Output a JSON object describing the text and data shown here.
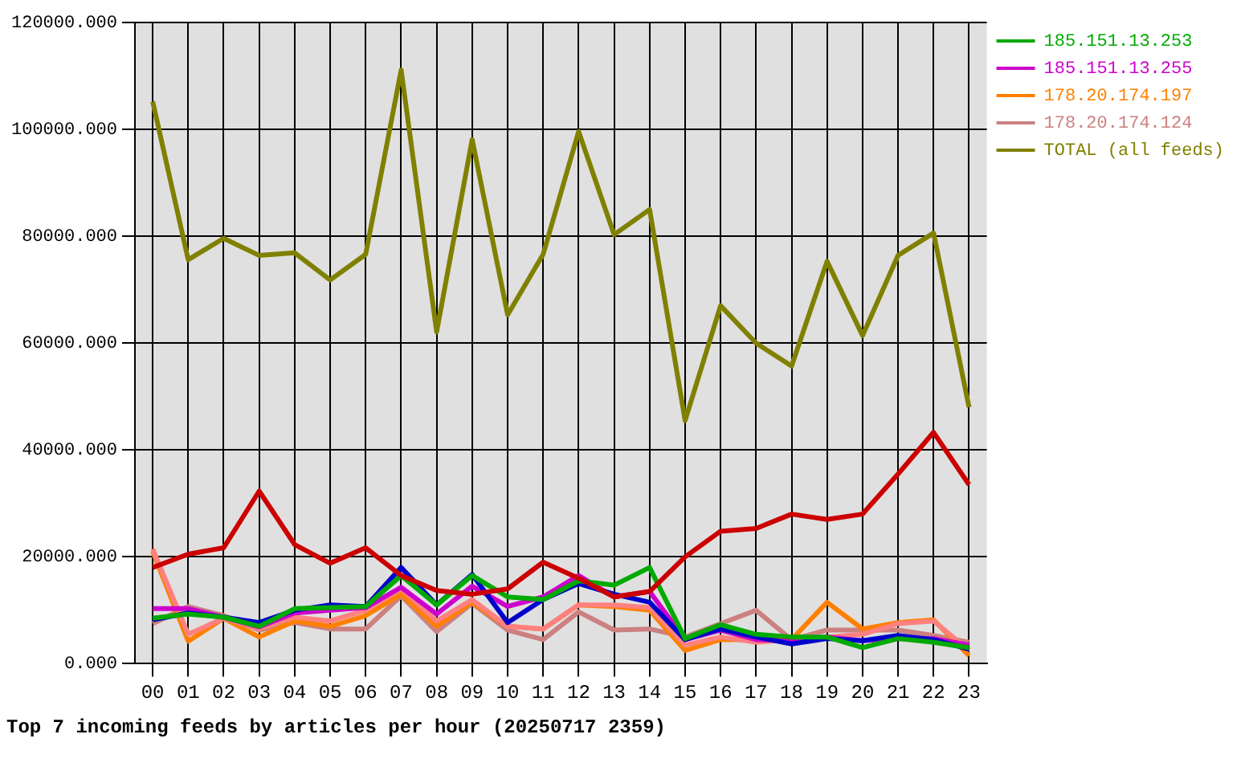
{
  "chart_data": {
    "type": "line",
    "title": "Top 7 incoming feeds by articles per hour (20250717 2359)",
    "categories": [
      "00",
      "01",
      "02",
      "03",
      "04",
      "05",
      "06",
      "07",
      "08",
      "09",
      "10",
      "11",
      "12",
      "13",
      "14",
      "15",
      "16",
      "17",
      "18",
      "19",
      "20",
      "21",
      "22",
      "23"
    ],
    "series": [
      {
        "color": "#cc0000",
        "values": [
          18000,
          20500,
          21700,
          32300,
          22300,
          18800,
          21700,
          16500,
          13700,
          13000,
          14000,
          19000,
          16000,
          12500,
          13500,
          20000,
          24800,
          25300,
          28000,
          27000,
          28000,
          35500,
          43300,
          33500
        ]
      },
      {
        "name": "185.151.13.253",
        "color": "#00aa00",
        "values": [
          8500,
          9300,
          8700,
          7000,
          10300,
          10500,
          10700,
          16500,
          11000,
          16500,
          12500,
          12000,
          15500,
          14700,
          18000,
          4700,
          7300,
          5500,
          5000,
          5000,
          3000,
          4700,
          4000,
          3000
        ]
      },
      {
        "color": "#0000cc",
        "values": [
          8200,
          9500,
          8700,
          7700,
          10000,
          11000,
          10700,
          18000,
          11000,
          16700,
          7700,
          12000,
          15000,
          13000,
          11500,
          4500,
          6500,
          5000,
          3700,
          4700,
          4300,
          5300,
          4500,
          2700
        ]
      },
      {
        "name": "185.151.13.255",
        "color": "#cc00cc",
        "values": [
          10300,
          10300,
          8700,
          6900,
          9500,
          10000,
          10500,
          14300,
          9300,
          14500,
          10700,
          12500,
          16500,
          12500,
          13500,
          4500,
          6300,
          4500,
          4300,
          5000,
          4300,
          4700,
          4700,
          3500
        ]
      },
      {
        "color": "#ff8080",
        "values": [
          21500,
          5500,
          8500,
          6500,
          8700,
          8000,
          10000,
          14000,
          8000,
          12000,
          7000,
          6500,
          11000,
          11000,
          10500,
          3500,
          5000,
          4000,
          4500,
          5000,
          5500,
          7500,
          8000,
          2500
        ]
      },
      {
        "name": "178.20.174.197",
        "color": "#ff8000",
        "values": [
          21000,
          4200,
          8500,
          5000,
          8000,
          7000,
          9000,
          13000,
          7000,
          11500,
          7000,
          6500,
          11000,
          10700,
          10000,
          2500,
          4500,
          4500,
          4500,
          11500,
          6500,
          7700,
          8200,
          1500
        ]
      },
      {
        "name": "178.20.174.124",
        "color": "#cc8080",
        "values": [
          7500,
          10700,
          9000,
          6300,
          7700,
          6500,
          6500,
          12700,
          6000,
          11300,
          6300,
          4500,
          9700,
          6300,
          6500,
          5000,
          7500,
          10000,
          4500,
          6300,
          6300,
          6300,
          5300,
          4000
        ]
      },
      {
        "name": "TOTAL (all feeds)",
        "color": "#808000",
        "values": [
          105200,
          75600,
          79600,
          76400,
          76900,
          71800,
          76600,
          111100,
          62100,
          98100,
          65300,
          76600,
          99600,
          80300,
          85000,
          45500,
          67000,
          60000,
          55700,
          75300,
          61400,
          76400,
          80600,
          48000
        ]
      }
    ],
    "ylim": [
      0,
      120000
    ],
    "yticks": [
      {
        "value": 0,
        "label": "0.000"
      },
      {
        "value": 20000,
        "label": "20000.000"
      },
      {
        "value": 40000,
        "label": "40000.000"
      },
      {
        "value": 60000,
        "label": "60000.000"
      },
      {
        "value": 80000,
        "label": "80000.000"
      },
      {
        "value": 100000,
        "label": "100000.000"
      },
      {
        "value": 120000,
        "label": "120000.000"
      }
    ],
    "grid": true,
    "legend": "top right",
    "marker": "none",
    "line_style": "solid"
  }
}
